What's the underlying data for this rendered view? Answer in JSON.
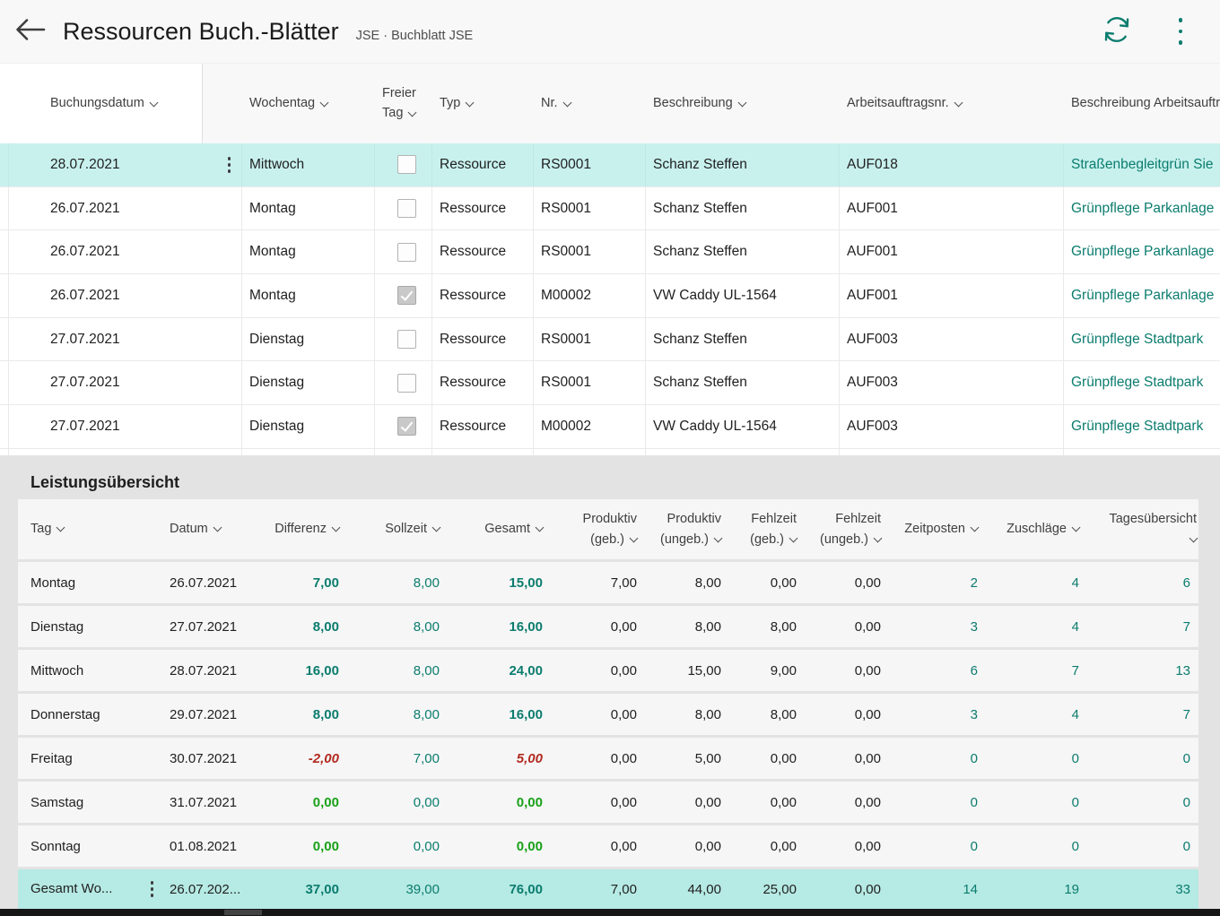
{
  "colors": {
    "accent": "#0b7c6e",
    "positive_green": "#18a118",
    "negative_red": "#b02a20",
    "selected_row_bg": "#c8f1ee",
    "total_row_bg": "#b6eae4"
  },
  "topbar": {
    "back_icon": "arrow-left",
    "title": "Ressourcen Buch.-Blätter",
    "context": "JSE · Buchblatt JSE",
    "refresh_icon": "sync",
    "more_icon": "vertical-ellipsis"
  },
  "journal": {
    "columns": [
      {
        "key": "buchungsdatum",
        "label": "Buchungsdatum"
      },
      {
        "key": "wochentag",
        "label": "Wochentag"
      },
      {
        "key": "freier-tag",
        "label": "Freier\nTag"
      },
      {
        "key": "typ",
        "label": "Typ"
      },
      {
        "key": "nr",
        "label": "Nr."
      },
      {
        "key": "beschreibung",
        "label": "Beschreibung"
      },
      {
        "key": "arbeitsauftragsnr",
        "label": "Arbeitsauftragsnr."
      },
      {
        "key": "beschreibung-arbeitsauftrag",
        "label": "Beschreibung Arbeitsauftr",
        "chev": false
      }
    ],
    "rows": [
      {
        "selected": true,
        "buchungsdatum": "28.07.2021",
        "wochentag": "Mittwoch",
        "freier_tag": false,
        "typ": "Ressource",
        "nr": "RS0001",
        "beschreibung": "Schanz Steffen",
        "arbeitsauftragsnr": "AUF018",
        "beschreibung_arbeitsauftrag": "Straßenbegleitgrün Sie"
      },
      {
        "selected": false,
        "buchungsdatum": "26.07.2021",
        "wochentag": "Montag",
        "freier_tag": false,
        "typ": "Ressource",
        "nr": "RS0001",
        "beschreibung": "Schanz Steffen",
        "arbeitsauftragsnr": "AUF001",
        "beschreibung_arbeitsauftrag": "Grünpflege Parkanlage"
      },
      {
        "selected": false,
        "buchungsdatum": "26.07.2021",
        "wochentag": "Montag",
        "freier_tag": false,
        "typ": "Ressource",
        "nr": "RS0001",
        "beschreibung": "Schanz Steffen",
        "arbeitsauftragsnr": "AUF001",
        "beschreibung_arbeitsauftrag": "Grünpflege Parkanlage"
      },
      {
        "selected": false,
        "buchungsdatum": "26.07.2021",
        "wochentag": "Montag",
        "freier_tag": true,
        "typ": "Ressource",
        "nr": "M00002",
        "beschreibung": "VW Caddy UL-1564",
        "arbeitsauftragsnr": "AUF001",
        "beschreibung_arbeitsauftrag": "Grünpflege Parkanlage"
      },
      {
        "selected": false,
        "buchungsdatum": "27.07.2021",
        "wochentag": "Dienstag",
        "freier_tag": false,
        "typ": "Ressource",
        "nr": "RS0001",
        "beschreibung": "Schanz Steffen",
        "arbeitsauftragsnr": "AUF003",
        "beschreibung_arbeitsauftrag": "Grünpflege Stadtpark"
      },
      {
        "selected": false,
        "buchungsdatum": "27.07.2021",
        "wochentag": "Dienstag",
        "freier_tag": false,
        "typ": "Ressource",
        "nr": "RS0001",
        "beschreibung": "Schanz Steffen",
        "arbeitsauftragsnr": "AUF003",
        "beschreibung_arbeitsauftrag": "Grünpflege Stadtpark"
      },
      {
        "selected": false,
        "buchungsdatum": "27.07.2021",
        "wochentag": "Dienstag",
        "freier_tag": true,
        "typ": "Ressource",
        "nr": "M00002",
        "beschreibung": "VW Caddy UL-1564",
        "arbeitsauftragsnr": "AUF003",
        "beschreibung_arbeitsauftrag": "Grünpflege Stadtpark"
      }
    ]
  },
  "summary": {
    "title": "Leistungsübersicht",
    "columns": [
      {
        "key": "tag",
        "label": "Tag"
      },
      {
        "key": "datum",
        "label": "Datum"
      },
      {
        "key": "differenz",
        "label": "Differenz"
      },
      {
        "key": "sollzeit",
        "label": "Sollzeit"
      },
      {
        "key": "gesamt",
        "label": "Gesamt"
      },
      {
        "key": "produktiv-geb",
        "label": "Produktiv\n(geb.)"
      },
      {
        "key": "produktiv-ungeb",
        "label": "Produktiv\n(ungeb.)"
      },
      {
        "key": "fehlzeit-geb",
        "label": "Fehlzeit\n(geb.)"
      },
      {
        "key": "fehlzeit-ungeb",
        "label": "Fehlzeit\n(ungeb.)"
      },
      {
        "key": "zeitposten",
        "label": "Zeitposten"
      },
      {
        "key": "zuschlaege",
        "label": "Zuschläge"
      },
      {
        "key": "tagesuebersicht",
        "label": "Tagesübersicht\n"
      }
    ],
    "rows": [
      {
        "tag": "Montag",
        "datum": "26.07.2021",
        "cells": [
          {
            "v": "7,00",
            "s": "tb"
          },
          {
            "v": "8,00",
            "s": "t"
          },
          {
            "v": "15,00",
            "s": "tb"
          },
          {
            "v": "7,00",
            "s": "k"
          },
          {
            "v": "8,00",
            "s": "k"
          },
          {
            "v": "0,00",
            "s": "k"
          },
          {
            "v": "0,00",
            "s": "k"
          },
          {
            "v": "2",
            "s": "t"
          },
          {
            "v": "4",
            "s": "t"
          },
          {
            "v": "6",
            "s": "t"
          }
        ]
      },
      {
        "tag": "Dienstag",
        "datum": "27.07.2021",
        "cells": [
          {
            "v": "8,00",
            "s": "tb"
          },
          {
            "v": "8,00",
            "s": "t"
          },
          {
            "v": "16,00",
            "s": "tb"
          },
          {
            "v": "0,00",
            "s": "k"
          },
          {
            "v": "8,00",
            "s": "k"
          },
          {
            "v": "8,00",
            "s": "k"
          },
          {
            "v": "0,00",
            "s": "k"
          },
          {
            "v": "3",
            "s": "t"
          },
          {
            "v": "4",
            "s": "t"
          },
          {
            "v": "7",
            "s": "t"
          }
        ]
      },
      {
        "tag": "Mittwoch",
        "datum": "28.07.2021",
        "cells": [
          {
            "v": "16,00",
            "s": "tb"
          },
          {
            "v": "8,00",
            "s": "t"
          },
          {
            "v": "24,00",
            "s": "tb"
          },
          {
            "v": "0,00",
            "s": "k"
          },
          {
            "v": "15,00",
            "s": "k"
          },
          {
            "v": "9,00",
            "s": "k"
          },
          {
            "v": "0,00",
            "s": "k"
          },
          {
            "v": "6",
            "s": "t"
          },
          {
            "v": "7",
            "s": "t"
          },
          {
            "v": "13",
            "s": "t"
          }
        ]
      },
      {
        "tag": "Donnerstag",
        "datum": "29.07.2021",
        "cells": [
          {
            "v": "8,00",
            "s": "tb"
          },
          {
            "v": "8,00",
            "s": "t"
          },
          {
            "v": "16,00",
            "s": "tb"
          },
          {
            "v": "0,00",
            "s": "k"
          },
          {
            "v": "8,00",
            "s": "k"
          },
          {
            "v": "8,00",
            "s": "k"
          },
          {
            "v": "0,00",
            "s": "k"
          },
          {
            "v": "3",
            "s": "t"
          },
          {
            "v": "4",
            "s": "t"
          },
          {
            "v": "7",
            "s": "t"
          }
        ]
      },
      {
        "tag": "Freitag",
        "datum": "30.07.2021",
        "cells": [
          {
            "v": "-2,00",
            "s": "rb"
          },
          {
            "v": "7,00",
            "s": "t"
          },
          {
            "v": "5,00",
            "s": "rb"
          },
          {
            "v": "0,00",
            "s": "k"
          },
          {
            "v": "5,00",
            "s": "k"
          },
          {
            "v": "0,00",
            "s": "k"
          },
          {
            "v": "0,00",
            "s": "k"
          },
          {
            "v": "0",
            "s": "t"
          },
          {
            "v": "0",
            "s": "t"
          },
          {
            "v": "0",
            "s": "t"
          }
        ]
      },
      {
        "tag": "Samstag",
        "datum": "31.07.2021",
        "cells": [
          {
            "v": "0,00",
            "s": "gb"
          },
          {
            "v": "0,00",
            "s": "t"
          },
          {
            "v": "0,00",
            "s": "gb"
          },
          {
            "v": "0,00",
            "s": "k"
          },
          {
            "v": "0,00",
            "s": "k"
          },
          {
            "v": "0,00",
            "s": "k"
          },
          {
            "v": "0,00",
            "s": "k"
          },
          {
            "v": "0",
            "s": "t"
          },
          {
            "v": "0",
            "s": "t"
          },
          {
            "v": "0",
            "s": "t"
          }
        ]
      },
      {
        "tag": "Sonntag",
        "datum": "01.08.2021",
        "cells": [
          {
            "v": "0,00",
            "s": "gb"
          },
          {
            "v": "0,00",
            "s": "t"
          },
          {
            "v": "0,00",
            "s": "gb"
          },
          {
            "v": "0,00",
            "s": "k"
          },
          {
            "v": "0,00",
            "s": "k"
          },
          {
            "v": "0,00",
            "s": "k"
          },
          {
            "v": "0,00",
            "s": "k"
          },
          {
            "v": "0",
            "s": "t"
          },
          {
            "v": "0",
            "s": "t"
          },
          {
            "v": "0",
            "s": "t"
          }
        ]
      }
    ],
    "total_row": {
      "tag": "Gesamt Wo...",
      "datum": "26.07.202...",
      "cells": [
        {
          "v": "37,00",
          "s": "tb"
        },
        {
          "v": "39,00",
          "s": "t"
        },
        {
          "v": "76,00",
          "s": "tb"
        },
        {
          "v": "7,00",
          "s": "k"
        },
        {
          "v": "44,00",
          "s": "k"
        },
        {
          "v": "25,00",
          "s": "k"
        },
        {
          "v": "0,00",
          "s": "k"
        },
        {
          "v": "14",
          "s": "t"
        },
        {
          "v": "19",
          "s": "t"
        },
        {
          "v": "33",
          "s": "t"
        }
      ]
    }
  }
}
